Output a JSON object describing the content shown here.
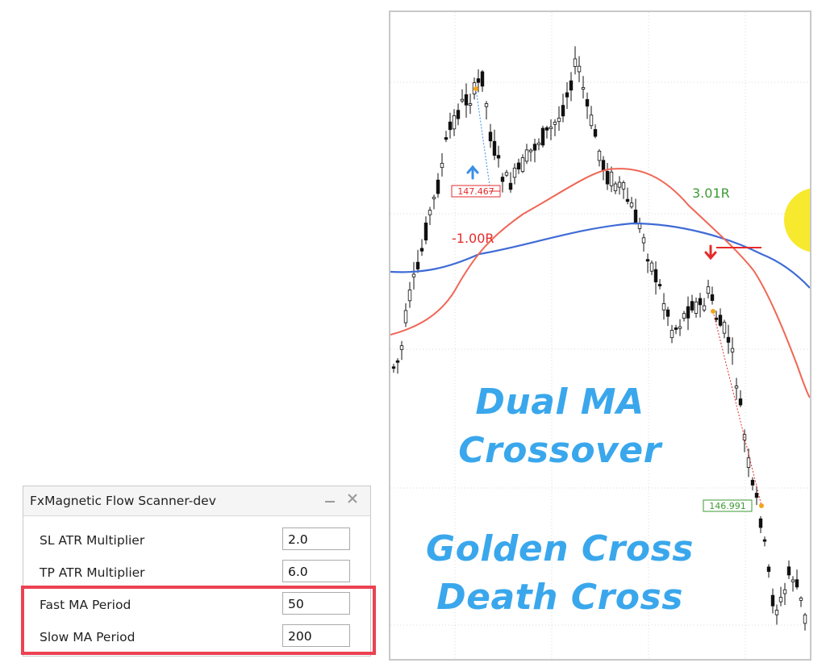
{
  "chart": {
    "overlay_line1": "Dual MA",
    "overlay_line2": "Crossover",
    "overlay_line3": "Golden Cross",
    "overlay_line4": "Death Cross",
    "buy_entry_price": "147.467",
    "sell_entry_price": "146.991",
    "loss_label": "-1.00R",
    "win_label": "3.01R",
    "colors": {
      "fast_ma": "#f06655",
      "slow_ma": "#3f6bd6",
      "overlay_text": "#3aa7ec",
      "buy_arrow": "#3a8fe6",
      "sell_arrow": "#e52b2b",
      "loss_text": "#e52b2b",
      "win_text": "#3e9a35",
      "highlight": "#ec4252",
      "yellow_dot": "#f7e92e"
    }
  },
  "scanner": {
    "title": "FxMagnetic Flow Scanner-dev",
    "minimize_icon": "minimize-icon",
    "close_icon": "close-icon",
    "params": [
      {
        "label": "SL ATR Multiplier",
        "value": "2.0"
      },
      {
        "label": "TP ATR Multiplier",
        "value": "6.0"
      },
      {
        "label": "Fast MA Period",
        "value": "50"
      },
      {
        "label": "Slow MA Period",
        "value": "200"
      }
    ]
  }
}
